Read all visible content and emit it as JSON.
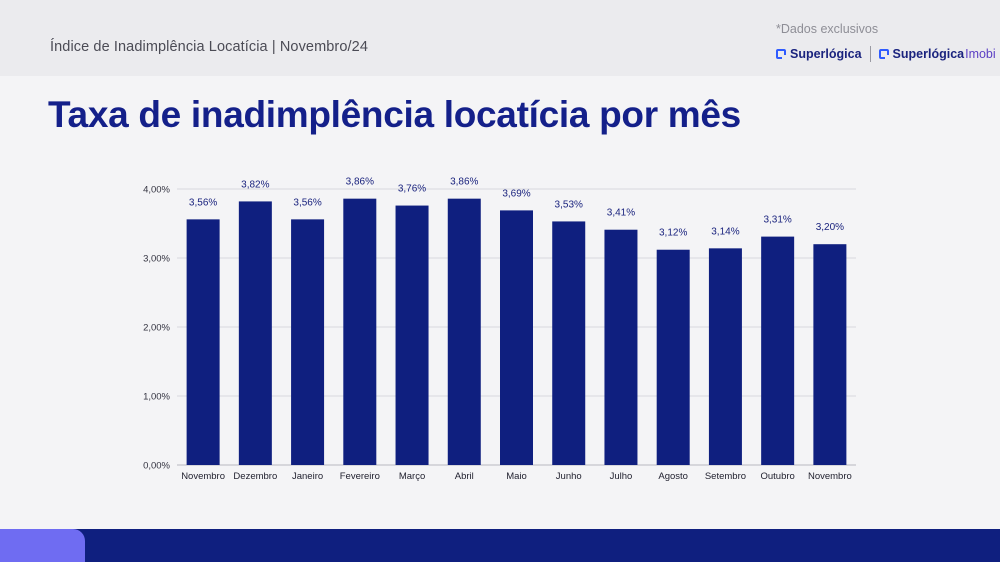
{
  "header": {
    "title": "Índice de Inadimplência Locatícia | Novembro/24",
    "exclusive_note": "*Dados exclusivos",
    "brand_primary": "Superlógica",
    "brand_secondary_main": "Superlógica",
    "brand_secondary_sub": "Imobi"
  },
  "slide": {
    "title": "Taxa de inadimplência locatícia por mês"
  },
  "colors": {
    "bar": "#0f1f7f",
    "title": "#14208a",
    "footer": "#0f1f7f",
    "footer_accent": "#6f6cf2"
  },
  "chart_data": {
    "type": "bar",
    "title": "",
    "xlabel": "",
    "ylabel": "",
    "categories": [
      "Novembro",
      "Dezembro",
      "Janeiro",
      "Fevereiro",
      "Março",
      "Abril",
      "Maio",
      "Junho",
      "Julho",
      "Agosto",
      "Setembro",
      "Outubro",
      "Novembro"
    ],
    "values": [
      3.56,
      3.82,
      3.56,
      3.86,
      3.76,
      3.86,
      3.69,
      3.53,
      3.41,
      3.12,
      3.14,
      3.31,
      3.2
    ],
    "data_labels": [
      "3,56%",
      "3,82%",
      "3,56%",
      "3,86%",
      "3,76%",
      "3,86%",
      "3,69%",
      "3,53%",
      "3,41%",
      "3,12%",
      "3,14%",
      "3,31%",
      "3,20%"
    ],
    "yticks": [
      0,
      1,
      2,
      3,
      4
    ],
    "ytick_labels": [
      "0,00%",
      "1,00%",
      "2,00%",
      "3,00%",
      "4,00%"
    ],
    "ylim": [
      0,
      4
    ],
    "grid": true,
    "legend": "none"
  }
}
